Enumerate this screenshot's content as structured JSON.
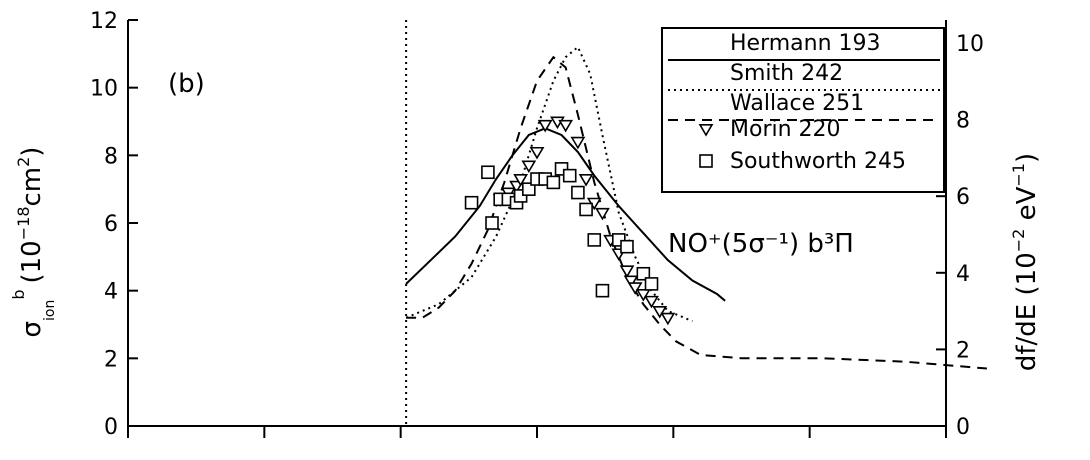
{
  "chart_data": {
    "type": "line",
    "panel_label": "(b)",
    "annotation": "NO⁺(5σ⁻¹) b³Π",
    "ylabel_left": {
      "symbol": "σ",
      "superscript": "b",
      "subscript": "ion",
      "unit_open": "(10",
      "unit_exp": "−18",
      "unit_base": "cm",
      "unit_sq": "2",
      "unit_close": ")"
    },
    "ylabel_right": {
      "main": "df/dE (10",
      "exp": "−2",
      "unit": " eV",
      "unit_exp": "−1",
      "close": ")"
    },
    "yticks_left": [
      "0",
      "2",
      "4",
      "6",
      "8",
      "10",
      "12"
    ],
    "yticks_right": [
      "0",
      "2",
      "4",
      "6",
      "8",
      "10"
    ],
    "ylim_left": [
      0,
      12
    ],
    "ylim_right": [
      0,
      10.6
    ],
    "xlim": [
      0,
      1
    ],
    "grid": false,
    "legend_position": "top-right",
    "threshold_x": 0.34,
    "series": [
      {
        "name": "Hermann 193",
        "style": "solid",
        "x": [
          0.34,
          0.37,
          0.4,
          0.43,
          0.45,
          0.47,
          0.49,
          0.51,
          0.53,
          0.55,
          0.57,
          0.6,
          0.63,
          0.66,
          0.69,
          0.72,
          0.73
        ],
        "y": [
          4.2,
          4.9,
          5.6,
          6.5,
          7.3,
          8.0,
          8.6,
          8.8,
          8.6,
          8.1,
          7.4,
          6.5,
          5.7,
          4.9,
          4.3,
          3.9,
          3.7
        ]
      },
      {
        "name": "Smith 242",
        "style": "dotted",
        "x": [
          0.34,
          0.38,
          0.42,
          0.45,
          0.48,
          0.5,
          0.52,
          0.535,
          0.55,
          0.565,
          0.58,
          0.6,
          0.62,
          0.64,
          0.66,
          0.69
        ],
        "y": [
          3.2,
          3.6,
          4.4,
          5.6,
          7.2,
          8.8,
          10.2,
          10.9,
          11.2,
          10.4,
          8.6,
          6.3,
          5.0,
          4.0,
          3.4,
          3.1
        ]
      },
      {
        "name": "Wallace 251",
        "style": "dashed",
        "x": [
          0.34,
          0.36,
          0.38,
          0.4,
          0.42,
          0.44,
          0.46,
          0.48,
          0.5,
          0.52,
          0.535,
          0.55,
          0.57,
          0.59,
          0.61,
          0.63,
          0.65,
          0.67,
          0.7,
          0.75,
          0.8,
          0.85,
          0.9,
          0.95,
          1.0,
          1.05
        ],
        "y": [
          3.2,
          3.2,
          3.5,
          4.0,
          4.8,
          5.8,
          7.2,
          8.8,
          10.2,
          10.9,
          10.6,
          9.2,
          7.2,
          5.6,
          4.4,
          3.6,
          3.0,
          2.5,
          2.1,
          2.0,
          2.0,
          2.0,
          1.95,
          1.9,
          1.8,
          1.7
        ]
      },
      {
        "name": "Morin 220",
        "style": "triangle",
        "x": [
          0.455,
          0.465,
          0.475,
          0.48,
          0.49,
          0.5,
          0.51,
          0.525,
          0.535,
          0.55,
          0.56,
          0.57,
          0.58,
          0.59,
          0.6,
          0.61,
          0.615,
          0.62,
          0.63,
          0.64,
          0.65,
          0.66
        ],
        "y": [
          6.7,
          6.9,
          7.1,
          7.3,
          7.7,
          8.1,
          8.9,
          9.0,
          8.9,
          8.4,
          7.3,
          6.6,
          6.3,
          5.5,
          5.1,
          4.6,
          4.3,
          4.1,
          3.9,
          3.7,
          3.4,
          3.2
        ]
      },
      {
        "name": "Southworth 245",
        "style": "square",
        "x": [
          0.42,
          0.44,
          0.445,
          0.455,
          0.465,
          0.475,
          0.48,
          0.49,
          0.5,
          0.51,
          0.52,
          0.53,
          0.54,
          0.55,
          0.56,
          0.57,
          0.58,
          0.6,
          0.61,
          0.63,
          0.64
        ],
        "y": [
          6.6,
          7.5,
          6.0,
          6.7,
          6.7,
          6.6,
          6.8,
          7.0,
          7.3,
          7.3,
          7.2,
          7.6,
          7.4,
          6.9,
          6.4,
          5.5,
          4.0,
          5.5,
          5.3,
          4.5,
          4.2
        ]
      }
    ]
  }
}
